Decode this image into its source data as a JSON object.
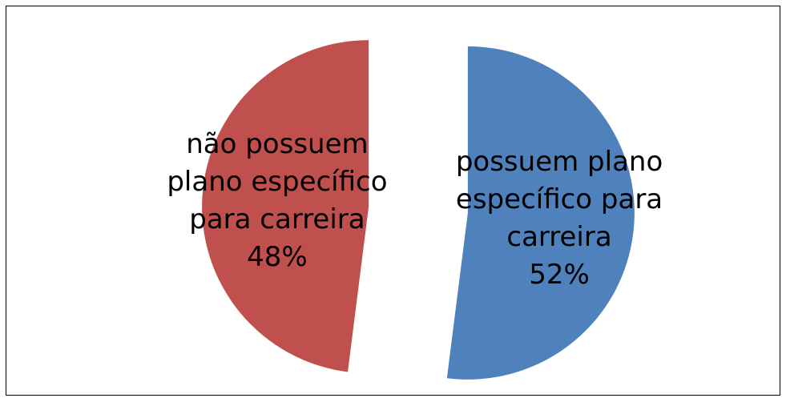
{
  "chart_data": {
    "type": "pie",
    "categories": [
      "possuem plano específico para carreira",
      "não possuem plano específico para carreira"
    ],
    "values": [
      52,
      48
    ],
    "value_labels": [
      "52%",
      "48%"
    ],
    "colors": [
      "#4f81bd",
      "#c0504d"
    ],
    "exploded": true
  }
}
